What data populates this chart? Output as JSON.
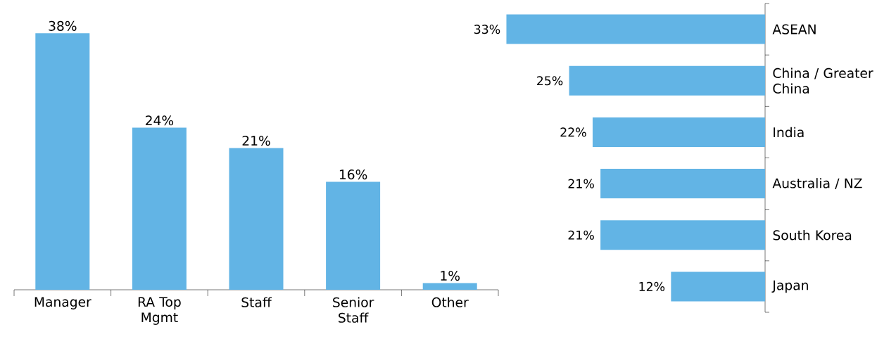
{
  "chart_data": [
    {
      "type": "bar",
      "categories": [
        "Manager",
        "RA Top Mgmt",
        "Staff",
        "Senior Staff",
        "Other"
      ],
      "values": [
        38,
        24,
        21,
        16,
        1
      ],
      "value_labels": [
        "38%",
        "24%",
        "21%",
        "16%",
        "1%"
      ],
      "color": "#62b4e5",
      "tick_labels": "x"
    },
    {
      "type": "bar",
      "orientation": "horizontal",
      "categories": [
        "ASEAN",
        "China / Greater China",
        "India",
        "Australia / NZ",
        "South Korea",
        "Japan"
      ],
      "values": [
        33,
        25,
        22,
        21,
        21,
        12
      ],
      "value_labels": [
        "33%",
        "25%",
        "22%",
        "21%",
        "21%",
        "12%"
      ],
      "color": "#62b4e5",
      "tick_labels": "y"
    }
  ]
}
